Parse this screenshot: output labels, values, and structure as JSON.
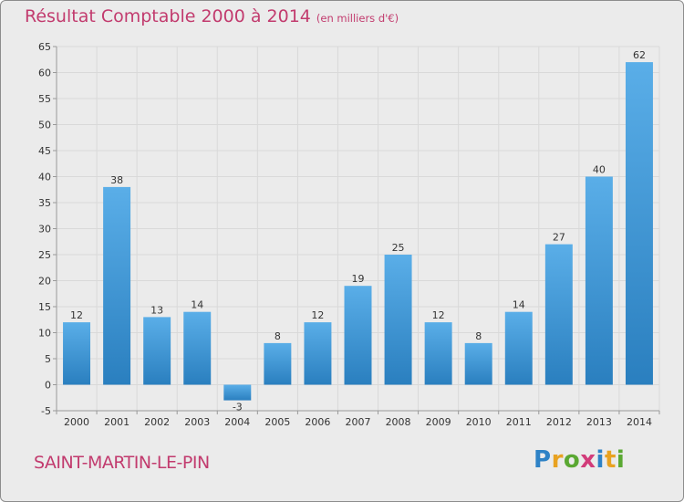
{
  "chart_data": {
    "type": "bar",
    "title": "Résultat Comptable 2000 à 2014",
    "subtitle": "(en milliers d'€)",
    "categories": [
      "2000",
      "2001",
      "2002",
      "2003",
      "2004",
      "2005",
      "2006",
      "2007",
      "2008",
      "2009",
      "2010",
      "2011",
      "2012",
      "2013",
      "2014"
    ],
    "values": [
      12,
      38,
      13,
      14,
      -3,
      8,
      12,
      19,
      25,
      12,
      8,
      14,
      27,
      40,
      62
    ],
    "ylim": [
      -5,
      65
    ],
    "yticks": [
      -5,
      0,
      5,
      10,
      15,
      20,
      25,
      30,
      35,
      40,
      45,
      50,
      55,
      60,
      65
    ],
    "grid": true,
    "bar_color_top": "#5aaee8",
    "bar_color_bottom": "#2a7fbf",
    "grid_color": "#d9d9d9"
  },
  "footer": {
    "place_name": "SAINT-MARTIN-LE-PIN",
    "logo": {
      "letters": [
        "P",
        "r",
        "o",
        "x",
        "i",
        "t",
        "i"
      ],
      "colors": [
        "#2e82c6",
        "#e8a221",
        "#5aa832",
        "#d23c7a",
        "#2e82c6",
        "#e8a221",
        "#5aa832"
      ]
    }
  }
}
